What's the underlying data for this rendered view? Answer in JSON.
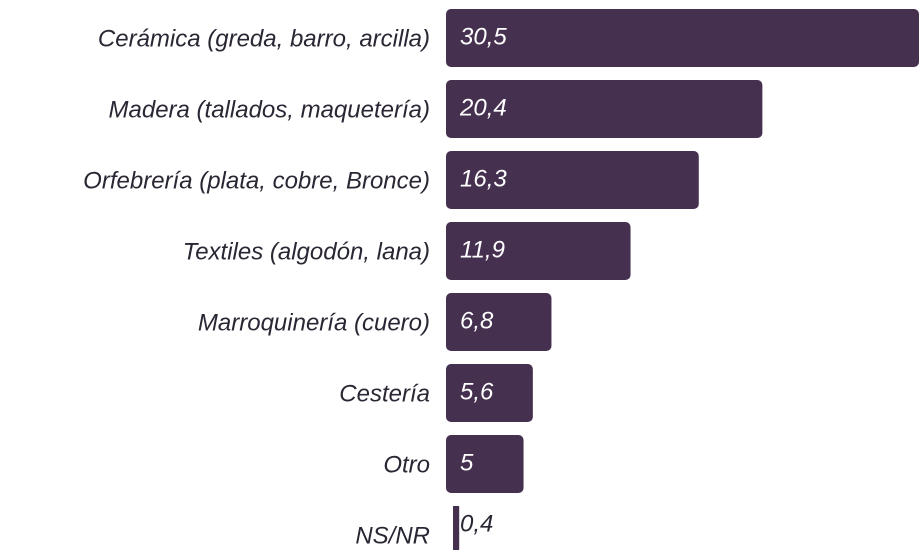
{
  "chart_data": {
    "type": "bar",
    "orientation": "horizontal",
    "categories": [
      "Cerámica (greda, barro, arcilla)",
      "Madera (tallados, maquetería)",
      "Orfebrería (plata, cobre, Bronce)",
      "Textiles (algodón, lana)",
      "Marroquinería (cuero)",
      "Cestería",
      "Otro",
      "NS/NR"
    ],
    "values": [
      30.5,
      20.4,
      16.3,
      11.9,
      6.8,
      5.6,
      5,
      0.4
    ],
    "value_labels": [
      "30,5",
      "20,4",
      "16,3",
      "11,9",
      "6,8",
      "5,6",
      "5",
      "0,4"
    ],
    "color": "#45304f"
  }
}
